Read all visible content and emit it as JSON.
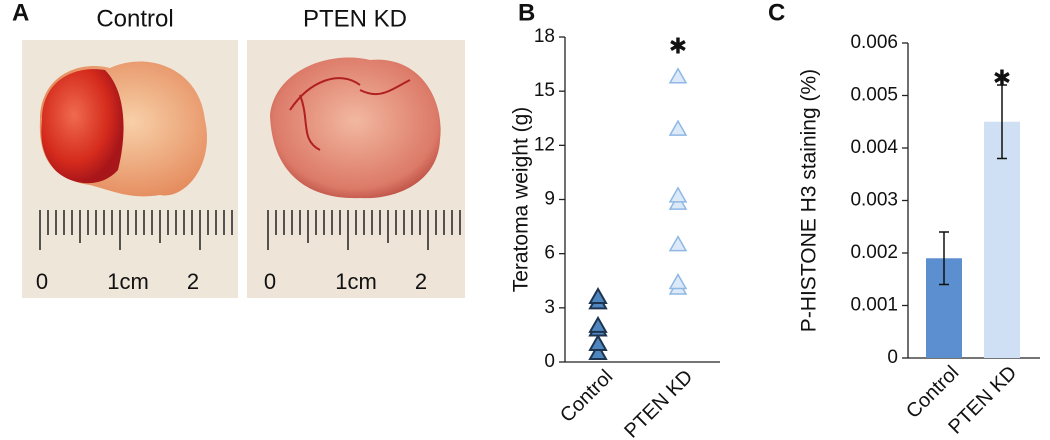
{
  "photo_panel": {
    "label": "A",
    "titles": [
      "Control",
      "PTEN KD"
    ],
    "ruler_labels": [
      "0",
      "1cm",
      "2"
    ]
  },
  "chart_data": [
    {
      "type": "strip",
      "label": "B",
      "ylabel": "Teratoma weight (g)",
      "categories": [
        "Control",
        "PTEN KD"
      ],
      "values": [
        [
          0.5,
          1.0,
          1.8,
          2.0,
          3.3,
          3.6
        ],
        [
          4.1,
          4.4,
          6.5,
          8.8,
          9.2,
          12.9,
          15.8
        ]
      ],
      "colors": [
        "#4f86c0",
        "#8fb8e4"
      ],
      "ylim": [
        0,
        18
      ],
      "yticks": [
        0,
        3,
        6,
        9,
        12,
        15,
        18
      ],
      "annotations": [
        {
          "text": "✱",
          "x": "PTEN KD",
          "y": 17.4
        }
      ]
    },
    {
      "type": "bar",
      "label": "C",
      "ylabel": "P-HISTONE H3 staining (%)",
      "categories": [
        "Control",
        "PTEN KD"
      ],
      "values": [
        0.0019,
        0.0045
      ],
      "errors": [
        0.0005,
        0.0007
      ],
      "colors": [
        "#5b8fd0",
        "#cfe0f4"
      ],
      "ylim": [
        0,
        0.006
      ],
      "yticks": [
        0,
        0.001,
        0.002,
        0.003,
        0.004,
        0.005,
        0.006
      ],
      "annotations": [
        {
          "text": "✱",
          "x": "PTEN KD",
          "y": 0.0053
        }
      ]
    }
  ]
}
